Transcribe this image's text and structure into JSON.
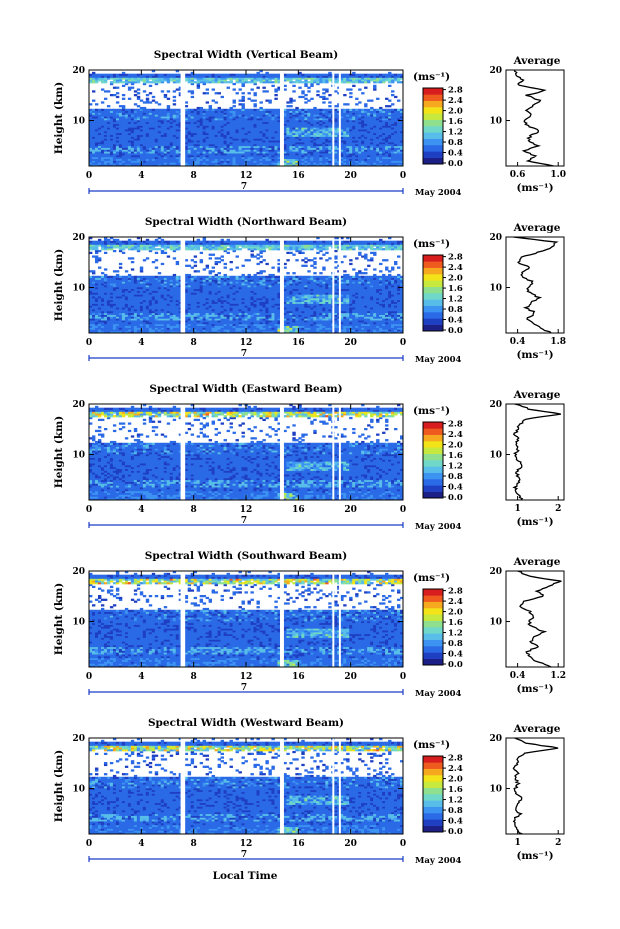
{
  "colors": {
    "colormap": [
      "#1b1f86",
      "#1f3fc2",
      "#2a6ae6",
      "#3c93f2",
      "#58bde8",
      "#6fd8c8",
      "#8ee08e",
      "#c7e83c",
      "#f3e319",
      "#f6a81f",
      "#ef5a1e",
      "#d71d1d"
    ],
    "axis": "#000000",
    "range_bar": "#1a3cc8",
    "data_gap": "#ffffff"
  },
  "shared": {
    "xlabel": "Local Time",
    "ylabel": "Height (km)",
    "x_ticks": [
      "0",
      "4",
      "8",
      "12",
      "16",
      "20",
      "0"
    ],
    "y_ticks": [
      "10",
      "20"
    ],
    "date_label": "May 2004",
    "day_label": "7",
    "unit_label": "(ms⁻¹)",
    "colorbar_ticks": [
      "0.0",
      "0.4",
      "0.8",
      "1.2",
      "1.6",
      "2.0",
      "2.4",
      "2.8"
    ],
    "avg_title": "Average",
    "avg_xlabel": "(ms⁻¹)"
  },
  "chart_data": [
    {
      "type": "heatmap",
      "title": "Spectral Width (Vertical Beam)",
      "xlim": [
        0,
        24
      ],
      "ylim": [
        1,
        20
      ],
      "clim": [
        0,
        3.0
      ],
      "gaps_hours": [
        [
          7.0,
          7.35
        ],
        [
          14.6,
          14.9
        ],
        [
          18.6,
          18.75
        ],
        [
          19.1,
          19.25
        ]
      ],
      "average_profile": {
        "title": "Average",
        "xlabel": "(ms⁻¹)",
        "xticks": [
          "0.6",
          "1.0"
        ],
        "xlim": [
          0.5,
          1.05
        ],
        "heights": [
          1,
          2,
          3,
          4,
          5,
          6,
          7,
          8,
          9,
          10,
          11,
          12,
          13,
          14,
          15,
          16,
          17,
          18,
          19,
          20
        ],
        "values": [
          0.95,
          0.72,
          0.78,
          0.66,
          0.8,
          0.7,
          0.74,
          0.82,
          0.7,
          0.68,
          0.74,
          0.7,
          0.76,
          0.82,
          0.7,
          0.88,
          0.62,
          0.66,
          0.6,
          0.58
        ]
      }
    },
    {
      "type": "heatmap",
      "title": "Spectral Width (Northward Beam)",
      "xlim": [
        0,
        24
      ],
      "ylim": [
        1,
        20
      ],
      "clim": [
        0,
        3.0
      ],
      "gaps_hours": [
        [
          7.0,
          7.35
        ],
        [
          14.6,
          14.9
        ],
        [
          18.6,
          18.75
        ],
        [
          19.1,
          19.25
        ]
      ],
      "average_profile": {
        "title": "Average",
        "xlabel": "(ms⁻¹)",
        "xticks": [
          "0.4",
          "1.8"
        ],
        "xlim": [
          0.3,
          1.9
        ],
        "heights": [
          1,
          2,
          3,
          4,
          5,
          6,
          7,
          8,
          9,
          10,
          11,
          12,
          13,
          14,
          15,
          16,
          17,
          18,
          19,
          20
        ],
        "values": [
          1.55,
          1.25,
          1.0,
          0.9,
          1.1,
          0.85,
          1.0,
          1.2,
          0.95,
          0.9,
          1.05,
          0.8,
          0.7,
          0.95,
          0.6,
          0.75,
          1.2,
          1.6,
          1.7,
          0.5
        ]
      }
    },
    {
      "type": "heatmap",
      "title": "Spectral Width (Eastward Beam)",
      "xlim": [
        0,
        24
      ],
      "ylim": [
        1,
        20
      ],
      "clim": [
        0,
        3.0
      ],
      "gaps_hours": [
        [
          7.0,
          7.35
        ],
        [
          14.6,
          14.9
        ],
        [
          18.6,
          18.75
        ],
        [
          19.1,
          19.25
        ]
      ],
      "average_profile": {
        "title": "Average",
        "xlabel": "(ms⁻¹)",
        "xticks": [
          "1",
          "2"
        ],
        "xlim": [
          0.4,
          2.4
        ],
        "heights": [
          1,
          2,
          3,
          4,
          5,
          6,
          7,
          8,
          9,
          10,
          11,
          12,
          13,
          14,
          15,
          16,
          17,
          18,
          19,
          20
        ],
        "values": [
          0.95,
          0.8,
          0.75,
          0.72,
          0.9,
          0.78,
          0.82,
          0.95,
          0.78,
          0.72,
          0.8,
          0.75,
          0.82,
          0.7,
          0.78,
          0.9,
          1.1,
          2.3,
          1.2,
          0.7
        ]
      }
    },
    {
      "type": "heatmap",
      "title": "Spectral Width (Southward Beam)",
      "xlim": [
        0,
        24
      ],
      "ylim": [
        1,
        20
      ],
      "clim": [
        0,
        3.0
      ],
      "gaps_hours": [
        [
          7.0,
          7.35
        ],
        [
          14.6,
          14.9
        ],
        [
          18.6,
          18.75
        ],
        [
          19.1,
          19.25
        ]
      ],
      "average_profile": {
        "title": "Average",
        "xlabel": "(ms⁻¹)",
        "xticks": [
          "0.4",
          "1.2"
        ],
        "xlim": [
          0.3,
          1.3
        ],
        "heights": [
          1,
          2,
          3,
          4,
          5,
          6,
          7,
          8,
          9,
          10,
          11,
          12,
          13,
          14,
          15,
          16,
          17,
          18,
          19,
          20
        ],
        "values": [
          1.1,
          0.85,
          0.7,
          0.65,
          0.85,
          0.72,
          0.8,
          0.95,
          0.75,
          0.68,
          0.78,
          0.7,
          0.55,
          0.6,
          0.95,
          0.85,
          1.05,
          1.25,
          0.7,
          0.5
        ]
      }
    },
    {
      "type": "heatmap",
      "title": "Spectral Width (Westward Beam)",
      "xlim": [
        0,
        24
      ],
      "ylim": [
        1,
        20
      ],
      "clim": [
        0,
        3.0
      ],
      "gaps_hours": [
        [
          7.0,
          7.35
        ],
        [
          14.6,
          14.9
        ],
        [
          18.6,
          18.75
        ],
        [
          19.1,
          19.25
        ]
      ],
      "average_profile": {
        "title": "Average",
        "xlabel": "(ms⁻¹)",
        "xticks": [
          "1",
          "2"
        ],
        "xlim": [
          0.4,
          2.4
        ],
        "heights": [
          1,
          2,
          3,
          4,
          5,
          6,
          7,
          8,
          9,
          10,
          11,
          12,
          13,
          14,
          15,
          16,
          17,
          18,
          19,
          20
        ],
        "values": [
          0.95,
          0.78,
          0.75,
          0.7,
          0.88,
          0.76,
          0.8,
          0.92,
          0.76,
          0.72,
          0.8,
          0.74,
          0.78,
          0.7,
          0.75,
          0.85,
          1.0,
          2.2,
          1.1,
          0.7
        ]
      }
    }
  ]
}
